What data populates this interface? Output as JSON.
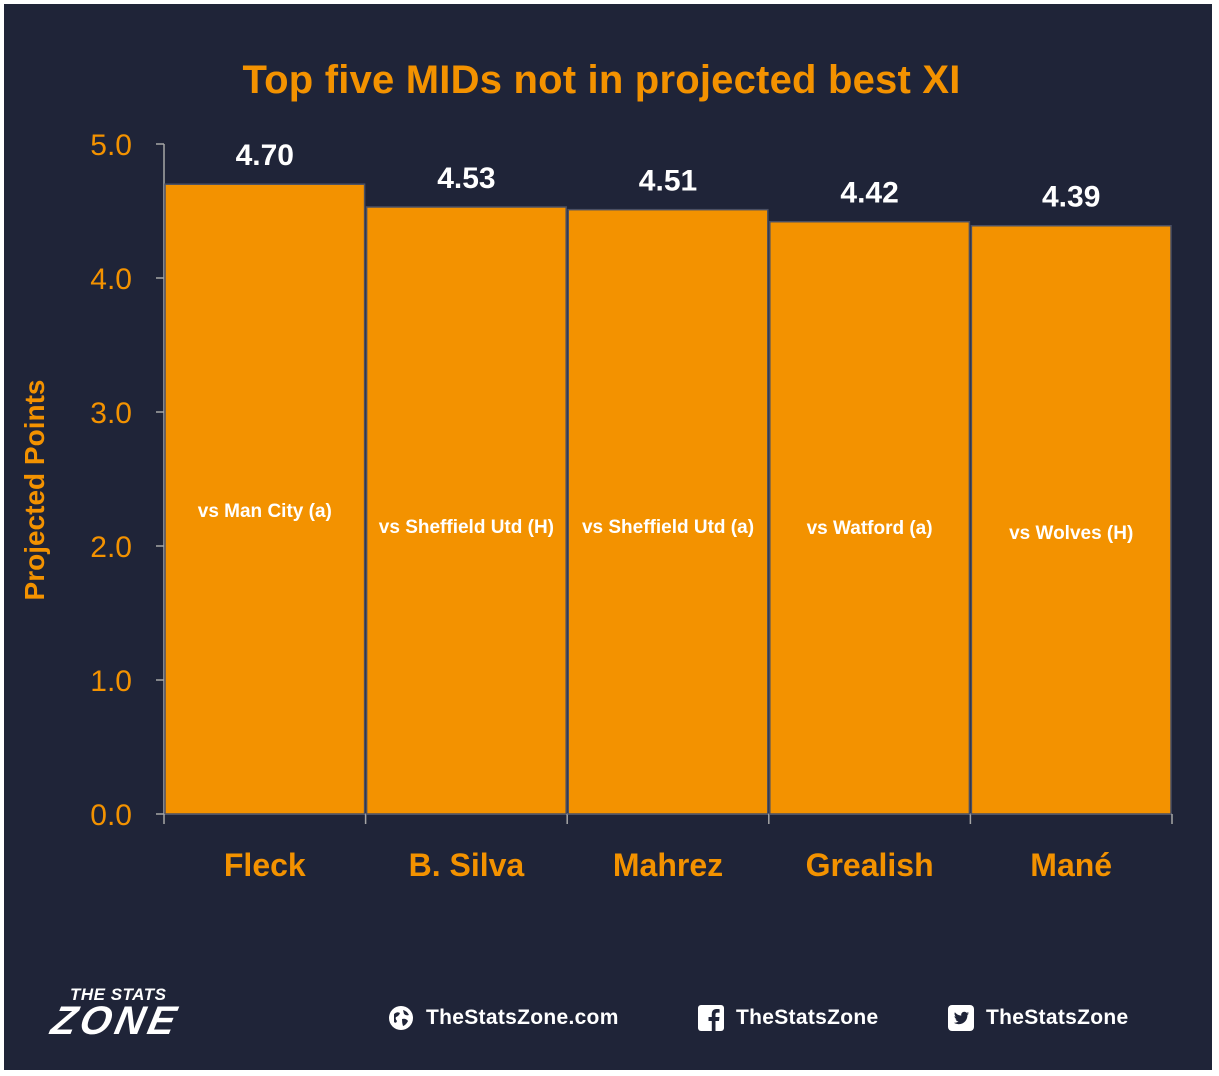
{
  "chart_data": {
    "type": "bar",
    "title": "Top five MIDs not in projected best XI",
    "ylabel": "Projected Points",
    "xlabel": "",
    "ylim": [
      0,
      5
    ],
    "yticks": [
      "0.0",
      "1.0",
      "2.0",
      "3.0",
      "4.0",
      "5.0"
    ],
    "categories": [
      "Fleck",
      "B. Silva",
      "Mahrez",
      "Grealish",
      "Mané"
    ],
    "values": [
      4.7,
      4.53,
      4.51,
      4.42,
      4.39
    ],
    "value_labels": [
      "4.70",
      "4.53",
      "4.51",
      "4.42",
      "4.39"
    ],
    "fixtures": [
      "vs Man City (a)",
      "vs Sheffield Utd (H)",
      "vs Sheffield Utd (a)",
      "vs Watford (a)",
      "vs Wolves (H)"
    ],
    "bar_color": "#f39200",
    "grid": false,
    "legend": "none"
  },
  "colors": {
    "background": "#1f2438",
    "accent": "#f39200",
    "text": "#ffffff"
  },
  "footer": {
    "logo_top": "THE STATS",
    "logo_main": "ZONE",
    "website": "TheStatsZone.com",
    "facebook": "TheStatsZone",
    "twitter": "TheStatsZone",
    "icons": [
      "globe-icon",
      "facebook-icon",
      "twitter-icon"
    ]
  }
}
